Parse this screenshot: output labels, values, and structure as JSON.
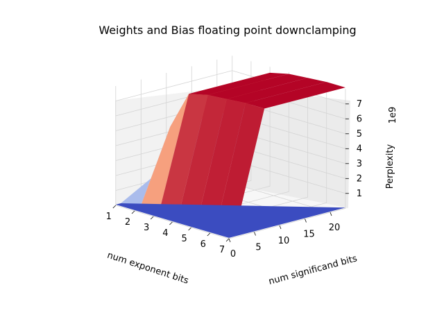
{
  "chart_data": {
    "type": "surface3d",
    "title": "Weights and Bias floating point downclamping",
    "xlabel": "num exponent bits",
    "ylabel": "num significand bits",
    "zlabel": "Perplexity",
    "z_offset_label": "1e9",
    "x_ticks": [
      "1",
      "2",
      "3",
      "4",
      "5",
      "6",
      "7"
    ],
    "y_ticks": [
      "0",
      "5",
      "10",
      "15",
      "20"
    ],
    "z_ticks": [
      "1",
      "2",
      "3",
      "4",
      "5",
      "6",
      "7"
    ],
    "xlim": [
      1,
      7
    ],
    "ylim": [
      0,
      23
    ],
    "zlim": [
      0,
      8
    ],
    "colormap": "coolwarm",
    "surface": {
      "exponent_bits": [
        1,
        2,
        3,
        4,
        5,
        6,
        7
      ],
      "perplexity_at_high_significand_e9": [
        1.2,
        5.0,
        7.6,
        7.9,
        8.0,
        8.1,
        8.1
      ],
      "perplexity_at_low_significand_e9": [
        0.05,
        0.05,
        0.05,
        0.05,
        0.05,
        0.05,
        0.05
      ]
    },
    "grid": true
  }
}
